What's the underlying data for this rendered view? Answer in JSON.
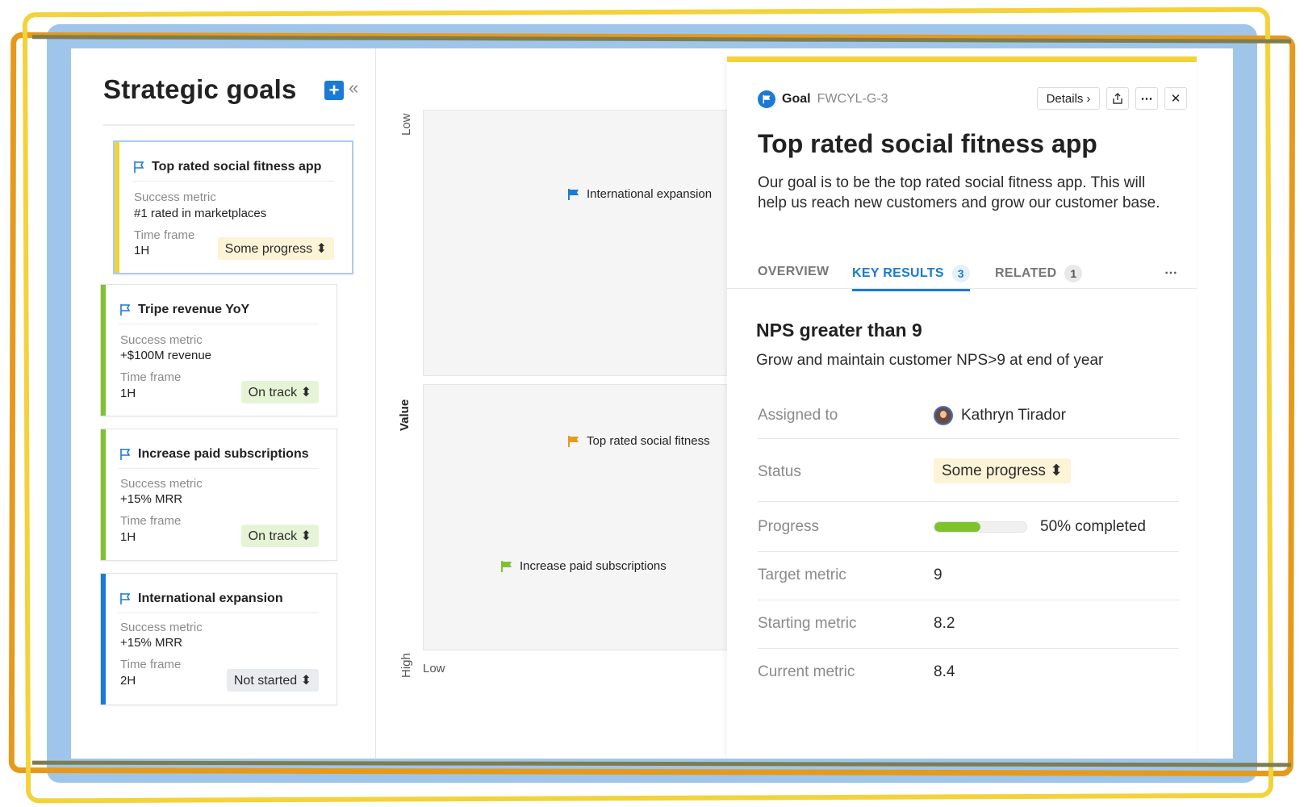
{
  "sidebar": {
    "title": "Strategic goals",
    "add_icon": "plus-icon",
    "collapse_icon": "double-chevron-left-icon",
    "metric_label": "Success metric",
    "timeframe_label": "Time frame",
    "goals": [
      {
        "title": "Top rated social fitness app",
        "metric": "#1 rated in marketplaces",
        "timeframe": "1H",
        "status": "Some progress",
        "bar_color": "#f3d23a",
        "status_bg": "#fdf3d6"
      },
      {
        "title": "Tripe revenue YoY",
        "metric": "+$100M revenue",
        "timeframe": "1H",
        "status": "On track",
        "bar_color": "#7fc22e",
        "status_bg": "#e6f4d6"
      },
      {
        "title": "Increase paid subscriptions",
        "metric": "+15% MRR",
        "timeframe": "1H",
        "status": "On track",
        "bar_color": "#7fc22e",
        "status_bg": "#e6f4d6"
      },
      {
        "title": "International expansion",
        "metric": "+15% MRR",
        "timeframe": "2H",
        "status": "Not started",
        "bar_color": "#1a7ad6",
        "status_bg": "#e9ecef"
      }
    ]
  },
  "chart": {
    "y_low": "Low",
    "y_label": "Value",
    "y_high": "High",
    "x_low": "Low",
    "points": [
      {
        "label": "International expansion",
        "color": "#1a7ad6"
      },
      {
        "label": "Top rated social fitness",
        "color": "#e69a1c"
      },
      {
        "label": "Increase paid subscriptions",
        "color": "#7fc22e"
      }
    ]
  },
  "detail": {
    "goal_word": "Goal",
    "goal_code": "FWCYL-G-3",
    "details_label": "Details",
    "share_icon": "share-icon",
    "more_icon": "more-horizontal-icon",
    "close_icon": "close-icon",
    "title": "Top rated social fitness app",
    "description": "Our goal is to be the top rated social fitness app. This will help us reach new customers and grow our customer base.",
    "tabs": [
      {
        "label": "OVERVIEW",
        "count": null
      },
      {
        "label": "KEY RESULTS",
        "count": "3"
      },
      {
        "label": "RELATED",
        "count": "1"
      }
    ],
    "key_result": {
      "title": "NPS greater than 9",
      "description": "Grow and maintain customer NPS>9 at end of year",
      "assigned_label": "Assigned to",
      "assigned_value": "Kathryn Tirador",
      "status_label": "Status",
      "status_value": "Some progress",
      "progress_label": "Progress",
      "progress_fraction": 0.5,
      "progress_text": "50% completed",
      "target_label": "Target metric",
      "target_value": "9",
      "starting_label": "Starting metric",
      "starting_value": "8.2",
      "current_label": "Current metric",
      "current_value": "8.4"
    }
  },
  "colors": {
    "accent": "#1a7ad6",
    "some_progress": "#f3d23a",
    "on_track": "#7fc22e",
    "progress_fill": "#7fc22e"
  }
}
